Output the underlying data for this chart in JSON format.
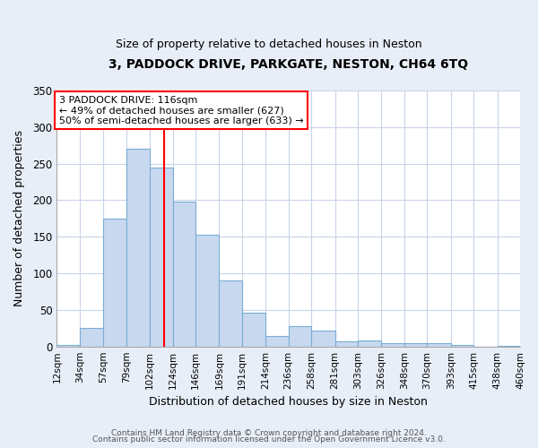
{
  "title1": "3, PADDOCK DRIVE, PARKGATE, NESTON, CH64 6TQ",
  "title2": "Size of property relative to detached houses in Neston",
  "xlabel": "Distribution of detached houses by size in Neston",
  "ylabel": "Number of detached properties",
  "bins": [
    "12sqm",
    "34sqm",
    "57sqm",
    "79sqm",
    "102sqm",
    "124sqm",
    "146sqm",
    "169sqm",
    "191sqm",
    "214sqm",
    "236sqm",
    "258sqm",
    "281sqm",
    "303sqm",
    "326sqm",
    "348sqm",
    "370sqm",
    "393sqm",
    "415sqm",
    "438sqm",
    "460sqm"
  ],
  "bar_values": [
    2,
    25,
    175,
    270,
    245,
    198,
    153,
    90,
    46,
    14,
    28,
    22,
    7,
    8,
    4,
    5,
    5,
    2,
    0,
    1
  ],
  "bar_color": "#c8d9ef",
  "bar_edge_color": "#7aadd4",
  "grid_color": "#c8d4e8",
  "vline_x": 116,
  "vline_color": "red",
  "annotation_text": "3 PADDOCK DRIVE: 116sqm\n← 49% of detached houses are smaller (627)\n50% of semi-detached houses are larger (633) →",
  "annotation_box_facecolor": "white",
  "annotation_box_edgecolor": "red",
  "ylim": [
    0,
    350
  ],
  "yticks": [
    0,
    50,
    100,
    150,
    200,
    250,
    300,
    350
  ],
  "footer1": "Contains HM Land Registry data © Crown copyright and database right 2024.",
  "footer2": "Contains public sector information licensed under the Open Government Licence v3.0.",
  "bg_color": "#e8eef8",
  "plot_bg_color": "#ffffff"
}
